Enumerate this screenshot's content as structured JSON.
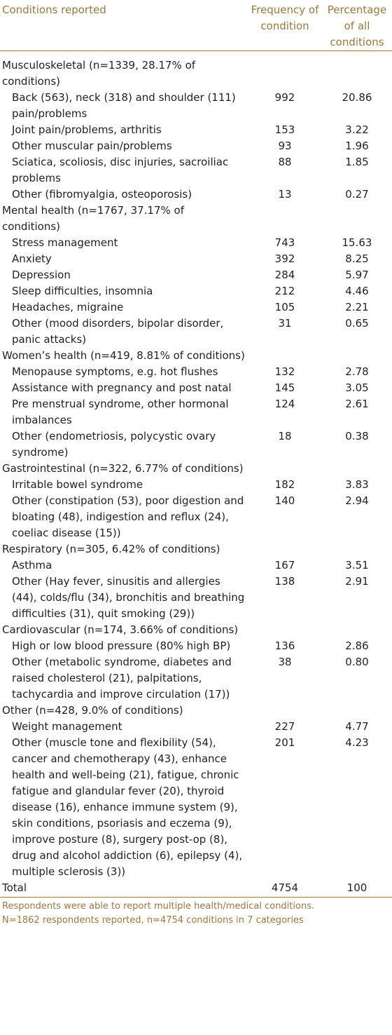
{
  "table": {
    "headers": {
      "condition": "Conditions reported",
      "frequency": "Frequency of condition",
      "percentage": "Percentage of all conditions"
    },
    "rows": [
      {
        "type": "category",
        "label": "Musculoskeletal (n=1339, 28.17% of conditions)"
      },
      {
        "type": "item",
        "label": "Back (563), neck (318) and shoulder (111) pain/problems",
        "frequency": "992",
        "percentage": "20.86"
      },
      {
        "type": "item",
        "label": "Joint pain/problems, arthritis",
        "frequency": "153",
        "percentage": "3.22"
      },
      {
        "type": "item",
        "label": "Other muscular pain/problems",
        "frequency": "93",
        "percentage": "1.96"
      },
      {
        "type": "item",
        "label": "Sciatica, scoliosis, disc injuries, sacroiliac problems",
        "frequency": "88",
        "percentage": "1.85"
      },
      {
        "type": "item",
        "label": "Other (fibromyalgia, osteoporosis)",
        "frequency": "13",
        "percentage": "0.27"
      },
      {
        "type": "category",
        "label": "Mental health (n=1767, 37.17% of conditions)"
      },
      {
        "type": "item",
        "label": "Stress management",
        "frequency": "743",
        "percentage": "15.63"
      },
      {
        "type": "item",
        "label": "Anxiety",
        "frequency": "392",
        "percentage": "8.25"
      },
      {
        "type": "item",
        "label": "Depression",
        "frequency": "284",
        "percentage": "5.97"
      },
      {
        "type": "item",
        "label": "Sleep difficulties, insomnia",
        "frequency": "212",
        "percentage": "4.46"
      },
      {
        "type": "item",
        "label": "Headaches, migraine",
        "frequency": "105",
        "percentage": "2.21"
      },
      {
        "type": "item",
        "label": "Other (mood disorders, bipolar disorder, panic attacks)",
        "frequency": "31",
        "percentage": "0.65"
      },
      {
        "type": "category",
        "label": "Women’s health (n=419, 8.81% of conditions)"
      },
      {
        "type": "item",
        "label": "Menopause symptoms, e.g. hot flushes",
        "frequency": "132",
        "percentage": "2.78"
      },
      {
        "type": "item",
        "label": "Assistance with pregnancy and post natal",
        "frequency": "145",
        "percentage": "3.05"
      },
      {
        "type": "item",
        "label": "Pre menstrual syndrome, other hormonal imbalances",
        "frequency": "124",
        "percentage": "2.61"
      },
      {
        "type": "item",
        "label": "Other (endometriosis, polycystic ovary syndrome)",
        "frequency": "18",
        "percentage": "0.38"
      },
      {
        "type": "category",
        "label": "Gastrointestinal (n=322, 6.77% of conditions)"
      },
      {
        "type": "item",
        "label": "Irritable bowel syndrome",
        "frequency": "182",
        "percentage": "3.83"
      },
      {
        "type": "item",
        "label": "Other (constipation (53), poor digestion and bloating (48), indigestion and reflux (24), coeliac disease (15))",
        "frequency": "140",
        "percentage": "2.94"
      },
      {
        "type": "category",
        "label": "Respiratory (n=305, 6.42% of conditions)"
      },
      {
        "type": "item",
        "label": "Asthma",
        "frequency": "167",
        "percentage": "3.51"
      },
      {
        "type": "item",
        "label": "Other (Hay fever, sinusitis and allergies (44), colds/flu (34), bronchitis and breathing difficulties (31), quit smoking (29))",
        "frequency": "138",
        "percentage": "2.91"
      },
      {
        "type": "category",
        "label": "Cardiovascular (n=174, 3.66% of conditions)"
      },
      {
        "type": "item",
        "label": "High or low blood pressure (80% high BP)",
        "frequency": "136",
        "percentage": "2.86"
      },
      {
        "type": "item",
        "label": "Other (metabolic syndrome, diabetes and raised cholesterol (21), palpitations, tachycardia and improve circulation (17))",
        "frequency": "38",
        "percentage": "0.80"
      },
      {
        "type": "category",
        "label": "Other (n=428, 9.0% of conditions)"
      },
      {
        "type": "item",
        "label": "Weight management",
        "frequency": "227",
        "percentage": "4.77"
      },
      {
        "type": "item",
        "label": "Other (muscle tone and flexibility (54), cancer and chemotherapy (43), enhance health and well-being (21), fatigue, chronic fatigue and glandular fever (20), thyroid disease (16), enhance immune system (9), skin conditions, psoriasis and eczema (9), improve posture (8), surgery post-op (8), drug and alcohol addiction (6), epilepsy (4), multiple sclerosis (3))",
        "frequency": "201",
        "percentage": "4.23"
      },
      {
        "type": "total",
        "label": "Total",
        "frequency": "4754",
        "percentage": "100"
      }
    ]
  },
  "footnotes": [
    "Respondents were able to report multiple health/medical conditions.",
    "N=1862 respondents reported, n=4754 conditions in 7 categories"
  ],
  "colors": {
    "header_text": "#9c7a3c",
    "body_text": "#231f20",
    "rule": "#9c7a3c"
  }
}
